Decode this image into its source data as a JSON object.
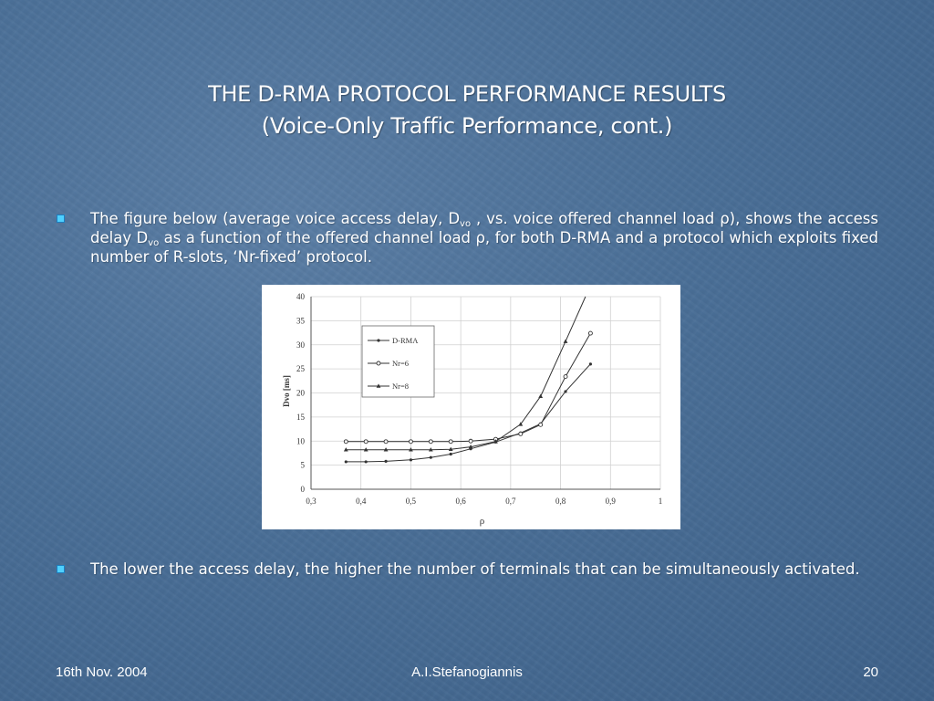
{
  "title": {
    "line1": "THE D-RMA PROTOCOL PERFORMANCE RESULTS",
    "line2": "(Voice-Only Traffic Performance, cont.)"
  },
  "bullet1": {
    "part1": "The figure below (average voice access delay, D",
    "sub1": "vo",
    "part2": " ,  vs. voice offered channel load ρ), shows the access delay D",
    "sub2": "vo",
    "part3": " as a function of the offered channel load ρ, for both D-RMA and a protocol which exploits fixed number of R-slots, ‘Nr-fixed’ protocol."
  },
  "bullet2": {
    "text": "The lower the access delay, the higher the number of terminals that can be simultaneously activated."
  },
  "footer": {
    "date": "16th Nov. 2004",
    "author": "A.I.Stefanogiannis",
    "page": "20"
  },
  "colors": {
    "bullet_marker": "#4fd0ff",
    "text": "#ffffff"
  },
  "chart_data": {
    "type": "line",
    "xlabel": "ρ",
    "ylabel": "Dvo [ms]",
    "xlim": [
      0.3,
      1.0
    ],
    "ylim": [
      0,
      40
    ],
    "xticks": [
      "0,3",
      "0,4",
      "0,5",
      "0,6",
      "0,7",
      "0,8",
      "0,9",
      "1"
    ],
    "yticks": [
      "0",
      "5",
      "10",
      "15",
      "20",
      "25",
      "30",
      "35",
      "40"
    ],
    "grid": true,
    "legend_position": "top-left",
    "series": [
      {
        "name": "D-RMA",
        "marker": "dot",
        "x": [
          0.37,
          0.41,
          0.45,
          0.5,
          0.54,
          0.58,
          0.62,
          0.67,
          0.72,
          0.76,
          0.81,
          0.86
        ],
        "y": [
          5.7,
          5.7,
          5.8,
          6.1,
          6.6,
          7.3,
          8.4,
          9.8,
          11.7,
          13.6,
          20.3,
          26.0
        ]
      },
      {
        "name": "Nr=6",
        "marker": "circle",
        "x": [
          0.37,
          0.41,
          0.45,
          0.5,
          0.54,
          0.58,
          0.62,
          0.67,
          0.72,
          0.76,
          0.81,
          0.86
        ],
        "y": [
          9.9,
          9.9,
          9.9,
          9.9,
          9.9,
          9.9,
          10.0,
          10.4,
          11.5,
          13.4,
          23.4,
          32.4
        ]
      },
      {
        "name": "Nr=8",
        "marker": "triangle",
        "x": [
          0.37,
          0.41,
          0.45,
          0.5,
          0.54,
          0.58,
          0.62,
          0.67,
          0.72,
          0.76,
          0.81,
          0.85
        ],
        "y": [
          8.2,
          8.2,
          8.2,
          8.2,
          8.2,
          8.3,
          8.8,
          9.9,
          13.5,
          19.3,
          30.7,
          40.0
        ]
      }
    ]
  }
}
